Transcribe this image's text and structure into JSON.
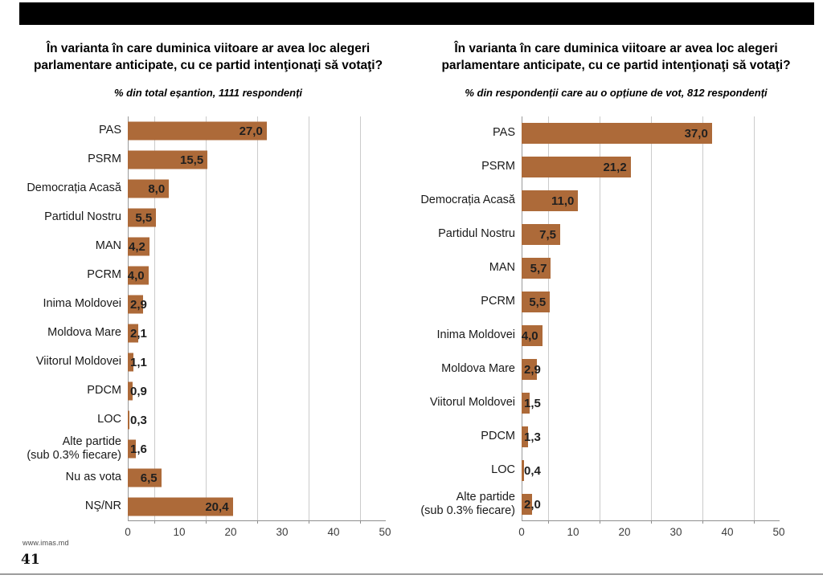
{
  "footer": {
    "site_url": "www.imas.md",
    "page_number": "41"
  },
  "header": {
    "band_color": "#000000"
  },
  "chart_data": [
    {
      "type": "bar",
      "title_lines": [
        "În varianta în care duminica viitoare ar avea loc alegeri",
        "parlamentare anticipate, cu ce partid intenţionaţi să votaţi?"
      ],
      "subtitle": "% din total eșantion, 1111 respondenți",
      "categories": [
        "PAS",
        "PSRM",
        "Democrația Acasă",
        "Partidul Nostru",
        "MAN",
        "PCRM",
        "Inima Moldovei",
        "Moldova Mare",
        "Viitorul Moldovei",
        "PDCM",
        "LOC",
        "Alte partide\n(sub 0.3% fiecare)",
        "Nu as vota",
        "NŞ/NR"
      ],
      "values": [
        27.0,
        15.5,
        8.0,
        5.5,
        4.2,
        4.0,
        2.9,
        2.1,
        1.1,
        0.9,
        0.3,
        1.6,
        6.5,
        20.4
      ],
      "value_labels": [
        "27,0",
        "15,5",
        "8,0",
        "5,5",
        "4,2",
        "4,0",
        "2,9",
        "2,1",
        "1,1",
        "0,9",
        "0,3",
        "1,6",
        "6,5",
        "20,4"
      ],
      "axis": {
        "min": 0,
        "max": 50,
        "ticks": [
          0,
          10,
          20,
          30,
          40,
          50
        ],
        "gridlines": [
          5,
          15,
          25,
          35,
          45
        ]
      },
      "bar_color": "#AD6A39",
      "xlabel": "",
      "ylabel": "",
      "legend": null
    },
    {
      "type": "bar",
      "title_lines": [
        "În varianta în care duminica viitoare ar avea loc alegeri",
        "parlamentare anticipate, cu ce partid intenţionaţi să votaţi?"
      ],
      "subtitle": "% din respondenții care au o opțiune de vot, 812 respondenți",
      "categories": [
        "PAS",
        "PSRM",
        "Democrația Acasă",
        "Partidul Nostru",
        "MAN",
        "PCRM",
        "Inima Moldovei",
        "Moldova Mare",
        "Viitorul Moldovei",
        "PDCM",
        "LOC",
        "Alte partide\n(sub 0.3% fiecare)"
      ],
      "values": [
        37.0,
        21.2,
        11.0,
        7.5,
        5.7,
        5.5,
        4.0,
        2.9,
        1.5,
        1.3,
        0.4,
        2.0
      ],
      "value_labels": [
        "37,0",
        "21,2",
        "11,0",
        "7,5",
        "5,7",
        "5,5",
        "4,0",
        "2,9",
        "1,5",
        "1,3",
        "0,4",
        "2,0"
      ],
      "axis": {
        "min": 0,
        "max": 50,
        "ticks": [
          0,
          10,
          20,
          30,
          40,
          50
        ],
        "gridlines": [
          5,
          15,
          25,
          35,
          45
        ]
      },
      "bar_color": "#AD6A39",
      "xlabel": "",
      "ylabel": "",
      "legend": null
    }
  ]
}
